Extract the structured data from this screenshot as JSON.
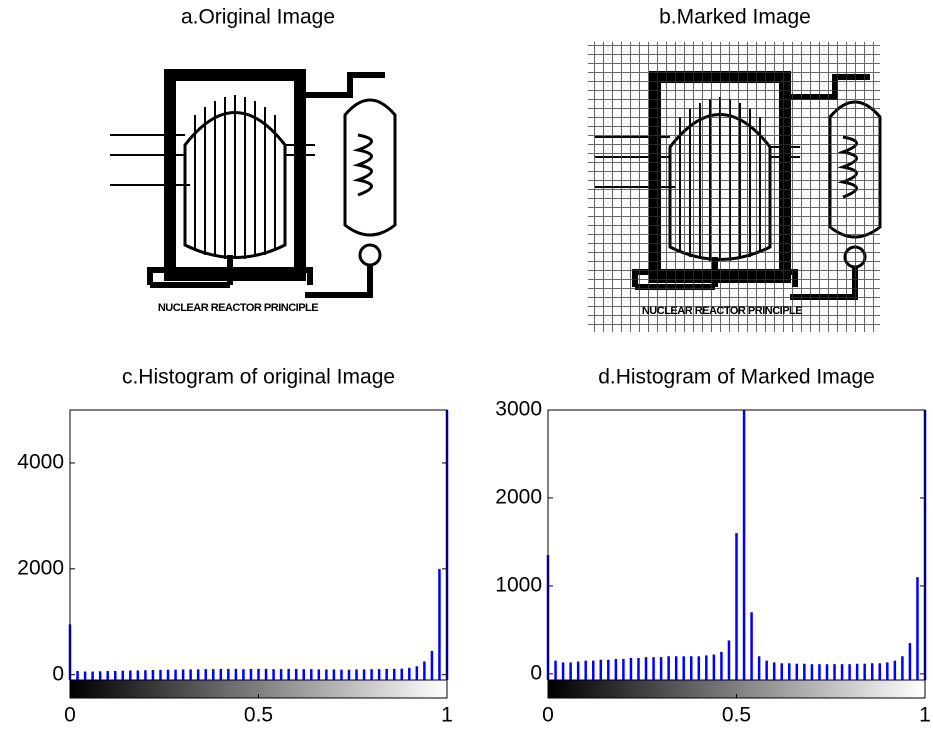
{
  "images": [
    {
      "title": "a.Original Image",
      "caption": "NUCLEAR REACTOR PRINCIPLE"
    },
    {
      "title": "b.Marked Image",
      "caption": "NUCLEAR REACTOR PRINCIPLE"
    }
  ],
  "chart_data": [
    {
      "type": "stem",
      "title": "c.Histogram of original Image",
      "color": "#0000ff",
      "colorbar": true,
      "x": [
        0,
        0.02,
        0.04,
        0.06,
        0.08,
        0.1,
        0.12,
        0.14,
        0.16,
        0.18,
        0.2,
        0.22,
        0.24,
        0.26,
        0.28,
        0.3,
        0.32,
        0.34,
        0.36,
        0.38,
        0.4,
        0.42,
        0.44,
        0.46,
        0.48,
        0.5,
        0.52,
        0.54,
        0.56,
        0.58,
        0.6,
        0.62,
        0.64,
        0.66,
        0.68,
        0.7,
        0.72,
        0.74,
        0.76,
        0.78,
        0.8,
        0.82,
        0.84,
        0.86,
        0.88,
        0.9,
        0.92,
        0.94,
        0.96,
        0.98,
        1
      ],
      "values": [
        950,
        70,
        60,
        60,
        65,
        70,
        70,
        75,
        80,
        80,
        85,
        90,
        90,
        95,
        95,
        100,
        100,
        100,
        105,
        105,
        110,
        110,
        110,
        105,
        110,
        110,
        110,
        105,
        105,
        110,
        110,
        105,
        105,
        100,
        100,
        100,
        95,
        95,
        100,
        100,
        105,
        105,
        110,
        110,
        115,
        130,
        160,
        250,
        450,
        2000,
        5000
      ],
      "xlim": [
        0,
        1
      ],
      "xticks": [
        0,
        0.5,
        1
      ],
      "ylim": [
        -100,
        5000
      ],
      "yticks": [
        0,
        2000,
        4000
      ]
    },
    {
      "type": "stem",
      "title": "d.Histogram of Marked Image",
      "color": "#0000ff",
      "colorbar": true,
      "x": [
        0,
        0.02,
        0.04,
        0.06,
        0.08,
        0.1,
        0.12,
        0.14,
        0.16,
        0.18,
        0.2,
        0.22,
        0.24,
        0.26,
        0.28,
        0.3,
        0.32,
        0.34,
        0.36,
        0.38,
        0.4,
        0.42,
        0.44,
        0.46,
        0.48,
        0.5,
        0.52,
        0.54,
        0.56,
        0.58,
        0.6,
        0.62,
        0.64,
        0.66,
        0.68,
        0.7,
        0.72,
        0.74,
        0.76,
        0.78,
        0.8,
        0.82,
        0.84,
        0.86,
        0.88,
        0.9,
        0.92,
        0.94,
        0.96,
        0.98,
        1
      ],
      "values": [
        1350,
        150,
        130,
        130,
        140,
        150,
        150,
        160,
        160,
        170,
        170,
        180,
        180,
        190,
        190,
        190,
        200,
        200,
        200,
        200,
        200,
        210,
        220,
        250,
        380,
        1600,
        3000,
        700,
        200,
        150,
        130,
        120,
        120,
        115,
        115,
        110,
        110,
        110,
        110,
        110,
        110,
        115,
        115,
        120,
        120,
        130,
        150,
        200,
        350,
        1100,
        3000
      ],
      "xlim": [
        0,
        1
      ],
      "xticks": [
        0,
        0.5,
        1
      ],
      "ylim": [
        -70,
        3000
      ],
      "yticks": [
        0,
        1000,
        2000,
        3000
      ]
    }
  ]
}
